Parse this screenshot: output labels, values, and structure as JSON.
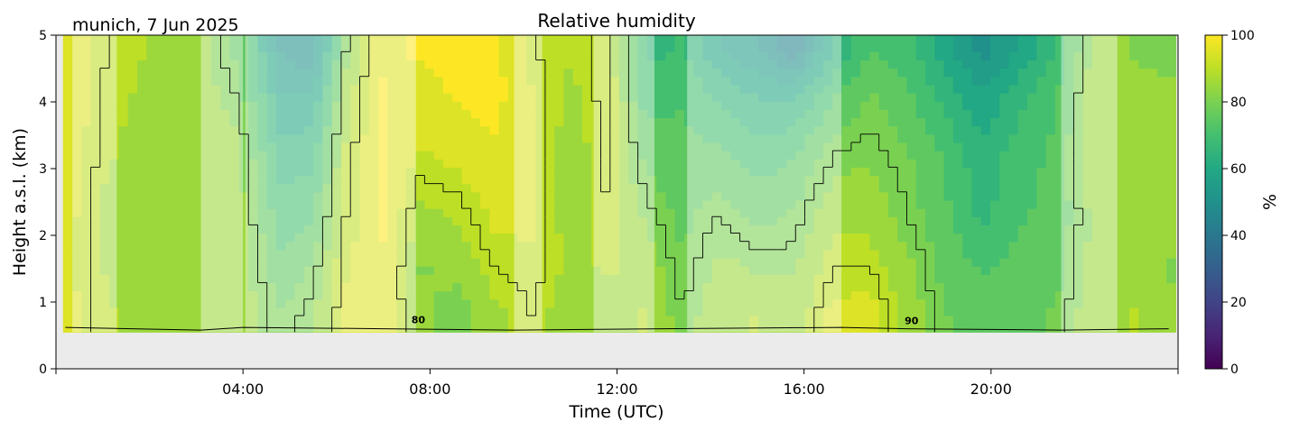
{
  "chart_data": {
    "type": "heatmap",
    "title": "Relative humidity",
    "location_date": "munich, 7 Jun 2025",
    "xlabel": "Time (UTC)",
    "ylabel": "Height a.s.l. (km)",
    "xlim_hours": [
      0,
      24
    ],
    "ylim_km": [
      0,
      5
    ],
    "x_ticks": [
      {
        "hour": 4,
        "label": "04:00"
      },
      {
        "hour": 8,
        "label": "08:00"
      },
      {
        "hour": 12,
        "label": "12:00"
      },
      {
        "hour": 16,
        "label": "16:00"
      },
      {
        "hour": 20,
        "label": "20:00"
      }
    ],
    "y_ticks": [
      "0",
      "1",
      "2",
      "3",
      "4",
      "5"
    ],
    "colorbar": {
      "label": "%",
      "range": [
        0,
        100
      ],
      "ticks": [
        "0",
        "20",
        "40",
        "60",
        "80",
        "100"
      ],
      "colormap": "viridis"
    },
    "contour_labels": [
      {
        "text": "80",
        "hour": 7.75,
        "km": 0.68
      },
      {
        "text": "90",
        "hour": 18.3,
        "km": 0.67
      }
    ],
    "data_floor_km": 0.55,
    "time_bins_hours": [
      0.2,
      1.1,
      2.1,
      3.1,
      3.9,
      4.8,
      5.5,
      6.2,
      7,
      7.8,
      8.6,
      9.4,
      10.2,
      11,
      11.8,
      12.6,
      13.4,
      14.2,
      15,
      15.8,
      16.6,
      17.4,
      18.2,
      19,
      19.8,
      20.6,
      21.4,
      22.2,
      23.1,
      23.8
    ],
    "height_bins_km": [
      0.8,
      1.5,
      2.3,
      3.2,
      4.1,
      4.8
    ],
    "rh_percent": [
      [
        95,
        94,
        95,
        96,
        97,
        97
      ],
      [
        88,
        87,
        86,
        88,
        89,
        90
      ],
      [
        86,
        84,
        83,
        85,
        86,
        87
      ],
      [
        84,
        85,
        86,
        86,
        85,
        84
      ],
      [
        86,
        86,
        85,
        84,
        80,
        76
      ],
      [
        78,
        74,
        70,
        65,
        58,
        52
      ],
      [
        82,
        78,
        72,
        66,
        58,
        48
      ],
      [
        94,
        92,
        90,
        88,
        85,
        80
      ],
      [
        96,
        97,
        98,
        98,
        98,
        97
      ],
      [
        84,
        82,
        86,
        92,
        96,
        98
      ],
      [
        80,
        84,
        88,
        94,
        98,
        99
      ],
      [
        86,
        90,
        94,
        97,
        99,
        99
      ],
      [
        90,
        92,
        93,
        94,
        93,
        90
      ],
      [
        84,
        86,
        85,
        84,
        86,
        88
      ],
      [
        86,
        88,
        90,
        91,
        92,
        92
      ],
      [
        88,
        86,
        82,
        76,
        70,
        66
      ],
      [
        80,
        78,
        76,
        74,
        72,
        68
      ],
      [
        86,
        84,
        80,
        74,
        66,
        58
      ],
      [
        88,
        82,
        76,
        70,
        62,
        52
      ],
      [
        84,
        82,
        78,
        72,
        62,
        44
      ],
      [
        94,
        90,
        86,
        80,
        72,
        62
      ],
      [
        95,
        90,
        86,
        82,
        78,
        72
      ],
      [
        86,
        84,
        80,
        78,
        74,
        70
      ],
      [
        78,
        76,
        74,
        72,
        66,
        60
      ],
      [
        74,
        72,
        66,
        64,
        58,
        50
      ],
      [
        76,
        74,
        72,
        70,
        66,
        58
      ],
      [
        78,
        76,
        74,
        74,
        72,
        68
      ],
      [
        86,
        84,
        84,
        86,
        86,
        84
      ],
      [
        88,
        86,
        86,
        86,
        84,
        82
      ],
      [
        84,
        82,
        84,
        86,
        84,
        80
      ]
    ],
    "grey_gap_hours": [
      [
        0.35,
        1.3
      ],
      [
        3.1,
        4.0
      ],
      [
        4.05,
        7.7
      ],
      [
        9.8,
        10.4
      ],
      [
        11.5,
        12.8
      ],
      [
        13.5,
        16.8
      ],
      [
        21.5,
        22.7
      ]
    ]
  }
}
